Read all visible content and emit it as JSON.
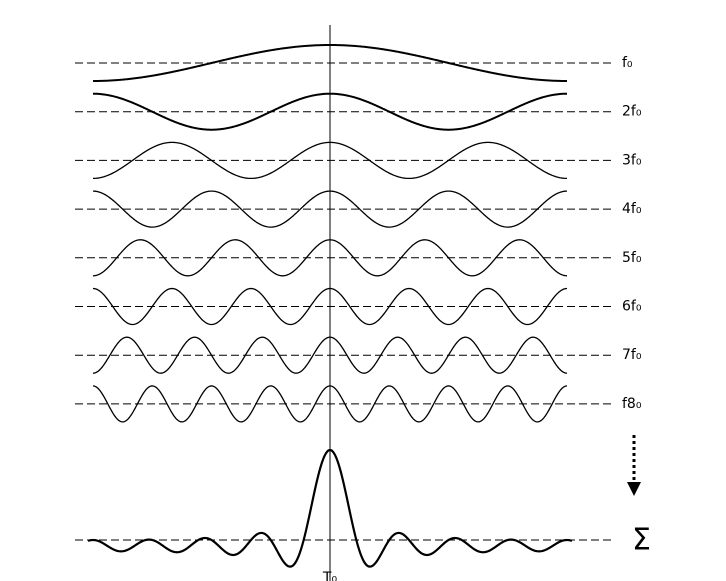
{
  "harmonics": {
    "labels": [
      "f₀",
      "2f₀",
      "3f₀",
      "4f₀",
      "5f₀",
      "6f₀",
      "7f₀",
      "f8₀"
    ]
  },
  "sum_label": "Σ",
  "time_label": "T₀"
}
